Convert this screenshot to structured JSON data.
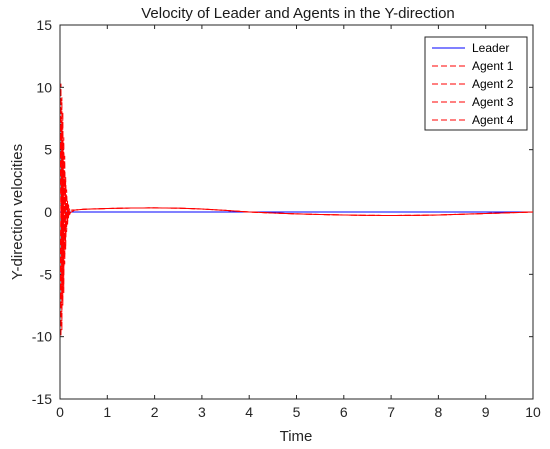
{
  "chart_data": {
    "type": "line",
    "title": "Velocity of Leader and Agents in the Y-direction",
    "xlabel": "Time",
    "ylabel": "Y-direction velocities",
    "xlim": [
      0,
      10
    ],
    "ylim": [
      -15,
      15
    ],
    "xticks": [
      "0",
      "1",
      "2",
      "3",
      "4",
      "5",
      "6",
      "7",
      "8",
      "9",
      "10"
    ],
    "yticks": [
      "15",
      "10",
      "5",
      "0",
      "-5",
      "-10",
      "-15"
    ],
    "grid": false,
    "legend_position": "top-right",
    "series": [
      {
        "name": "Leader",
        "color": "#0000ff",
        "style": "solid",
        "x": [
          0,
          1,
          2,
          3,
          4,
          5,
          6,
          7,
          8,
          9,
          10
        ],
        "y": [
          0,
          0,
          0,
          0,
          0,
          0,
          0,
          0,
          0,
          0,
          0
        ]
      },
      {
        "name": "Agent 1",
        "color": "#ff0000",
        "style": "dashed",
        "x": [
          0,
          0.02,
          0.04,
          0.06,
          0.08,
          0.1,
          0.12,
          0.14,
          0.16,
          0.18,
          0.2,
          0.3,
          0.5,
          1,
          1.5,
          2,
          2.5,
          3,
          3.5,
          4,
          4.5,
          5,
          5.5,
          6,
          6.5,
          7,
          7.5,
          8,
          8.5,
          9,
          9.5,
          10
        ],
        "y": [
          0,
          10.3,
          -9.5,
          8.0,
          -6.5,
          4.5,
          -3.0,
          1.8,
          -1.0,
          0.6,
          -0.2,
          0.15,
          0.22,
          0.28,
          0.32,
          0.33,
          0.31,
          0.24,
          0.13,
          0.0,
          -0.08,
          -0.15,
          -0.2,
          -0.24,
          -0.27,
          -0.28,
          -0.27,
          -0.24,
          -0.18,
          -0.12,
          -0.06,
          0.0
        ]
      },
      {
        "name": "Agent 2",
        "color": "#ff0000",
        "style": "dashed",
        "x": [
          0,
          0.02,
          0.04,
          0.06,
          0.08,
          0.1,
          0.12,
          0.14,
          0.16,
          0.18,
          0.2,
          0.3,
          0.5,
          1,
          1.5,
          2,
          2.5,
          3,
          3.5,
          4,
          4.5,
          5,
          5.5,
          6,
          6.5,
          7,
          7.5,
          8,
          8.5,
          9,
          9.5,
          10
        ],
        "y": [
          0,
          -10.0,
          9.2,
          -7.5,
          6.0,
          -4.2,
          2.8,
          -1.6,
          0.9,
          -0.5,
          0.25,
          0.15,
          0.22,
          0.28,
          0.32,
          0.33,
          0.31,
          0.24,
          0.13,
          0.0,
          -0.08,
          -0.15,
          -0.2,
          -0.24,
          -0.27,
          -0.28,
          -0.27,
          -0.24,
          -0.18,
          -0.12,
          -0.06,
          0.0
        ]
      },
      {
        "name": "Agent 3",
        "color": "#ff0000",
        "style": "dashed",
        "x": [
          0,
          0.02,
          0.04,
          0.06,
          0.08,
          0.1,
          0.12,
          0.14,
          0.16,
          0.18,
          0.2,
          0.3,
          0.5,
          1,
          1.5,
          2,
          2.5,
          3,
          3.5,
          4,
          4.5,
          5,
          5.5,
          6,
          6.5,
          7,
          7.5,
          8,
          8.5,
          9,
          9.5,
          10
        ],
        "y": [
          0,
          7.5,
          -7.0,
          5.8,
          -4.6,
          3.2,
          -2.1,
          1.2,
          -0.7,
          0.4,
          -0.1,
          0.15,
          0.22,
          0.28,
          0.32,
          0.33,
          0.31,
          0.24,
          0.13,
          0.0,
          -0.08,
          -0.15,
          -0.2,
          -0.24,
          -0.27,
          -0.28,
          -0.27,
          -0.24,
          -0.18,
          -0.12,
          -0.06,
          0.0
        ]
      },
      {
        "name": "Agent 4",
        "color": "#ff0000",
        "style": "dashed",
        "x": [
          0,
          0.02,
          0.04,
          0.06,
          0.08,
          0.1,
          0.12,
          0.14,
          0.16,
          0.18,
          0.2,
          0.3,
          0.5,
          1,
          1.5,
          2,
          2.5,
          3,
          3.5,
          4,
          4.5,
          5,
          5.5,
          6,
          6.5,
          7,
          7.5,
          8,
          8.5,
          9,
          9.5,
          10
        ],
        "y": [
          0,
          -7.8,
          7.2,
          -6.0,
          4.8,
          -3.4,
          2.2,
          -1.3,
          0.7,
          -0.4,
          0.15,
          0.15,
          0.22,
          0.28,
          0.32,
          0.33,
          0.31,
          0.24,
          0.13,
          0.0,
          -0.08,
          -0.15,
          -0.2,
          -0.24,
          -0.27,
          -0.28,
          -0.27,
          -0.24,
          -0.18,
          -0.12,
          -0.06,
          0.0
        ]
      }
    ]
  }
}
